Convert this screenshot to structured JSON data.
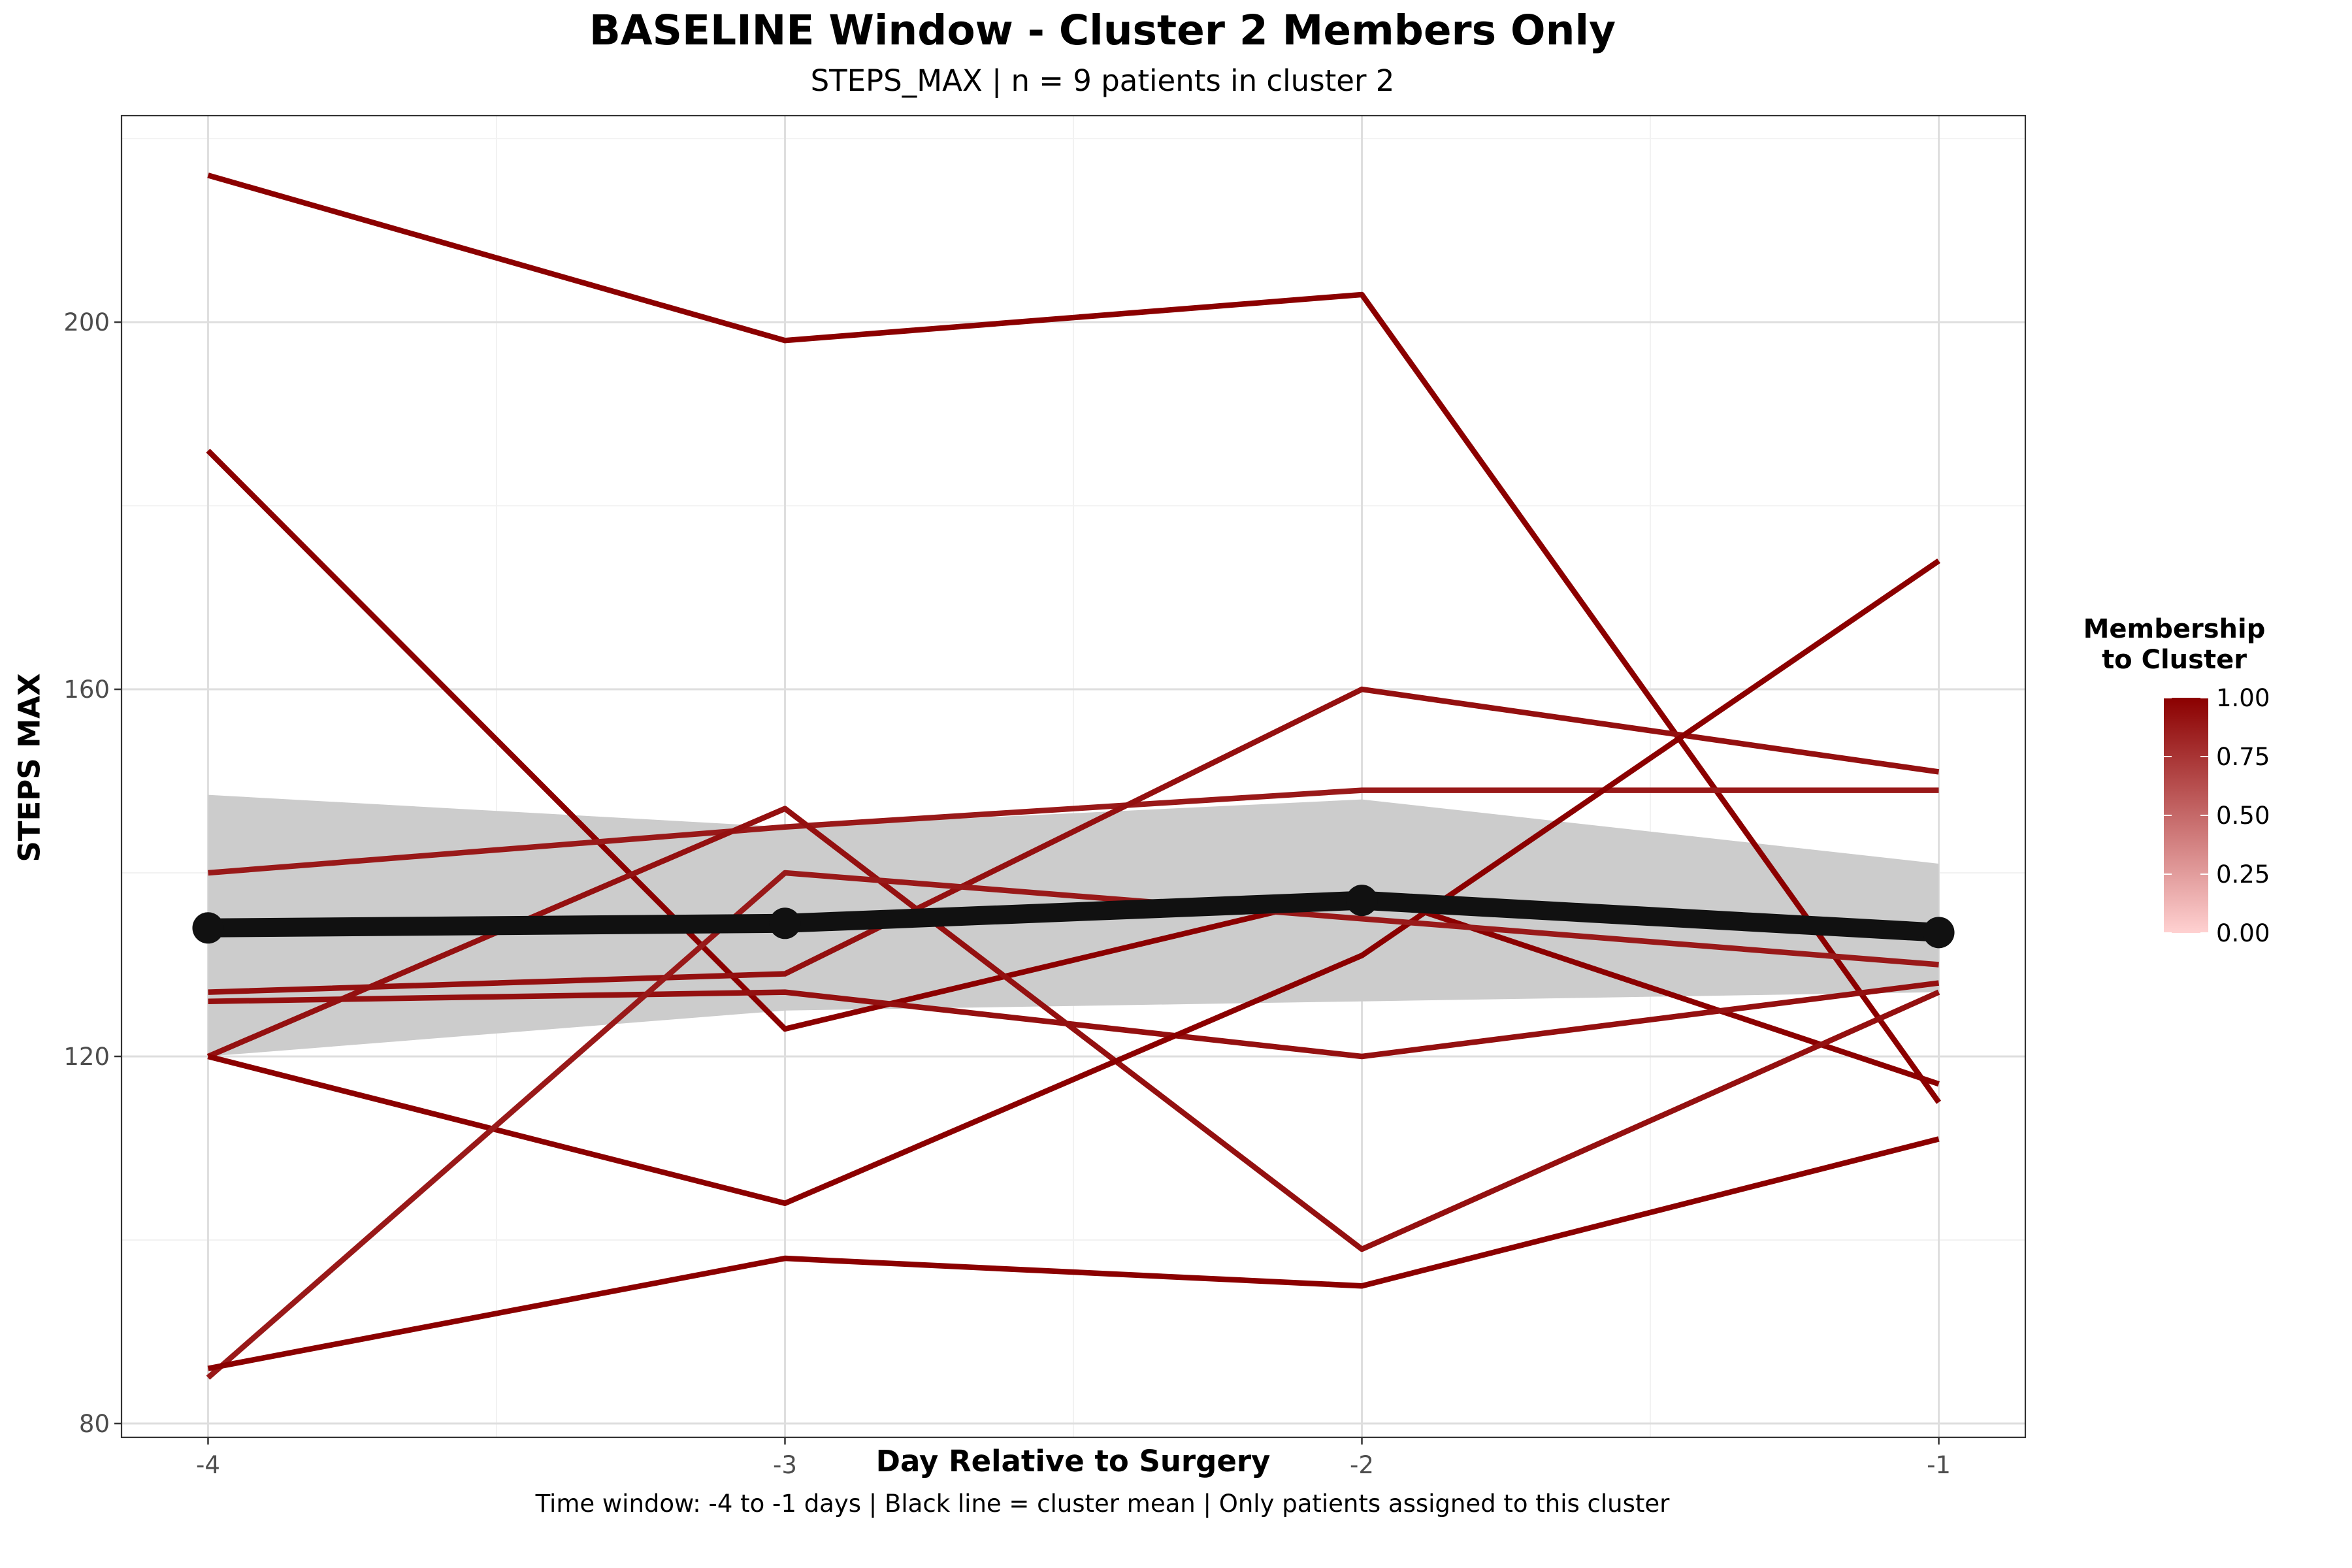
{
  "colors": {
    "member_line": "#8b0000",
    "mean_line": "#111111",
    "ribbon": "#cccccc",
    "legend_low": "#ffd1d1",
    "legend_high": "#8b0000"
  },
  "chart_data": {
    "type": "line",
    "title": "BASELINE Window - Cluster 2 Members Only",
    "subtitle": "STEPS_MAX | n = 9 patients in cluster 2",
    "caption": "Time window: -4 to -1 days | Black line = cluster mean | Only patients assigned to this cluster",
    "xlabel": "Day Relative to Surgery",
    "ylabel": "STEPS MAX",
    "x": [
      -4,
      -3,
      -2,
      -1
    ],
    "x_tick_labels": [
      "-4",
      "-3",
      "-2",
      "-1"
    ],
    "xlim": [
      -4.15,
      -0.85
    ],
    "ylim": [
      78.5,
      222.5
    ],
    "y_ticks": [
      80,
      120,
      160,
      200
    ],
    "y_tick_labels": [
      "80",
      "120",
      "160",
      "200"
    ],
    "grid": true,
    "series": [
      {
        "values": [
          216,
          198,
          203,
          115
        ],
        "membership": 1.0
      },
      {
        "values": [
          186,
          123,
          138,
          117
        ],
        "membership": 1.0
      },
      {
        "values": [
          140,
          145,
          149,
          149
        ],
        "membership": 0.9
      },
      {
        "values": [
          127,
          129,
          160,
          151
        ],
        "membership": 0.95
      },
      {
        "values": [
          126,
          127,
          120,
          128
        ],
        "membership": 0.95
      },
      {
        "values": [
          120,
          147,
          99,
          127
        ],
        "membership": 0.95
      },
      {
        "values": [
          120,
          104,
          131,
          174
        ],
        "membership": 1.0
      },
      {
        "values": [
          85,
          140,
          135,
          130
        ],
        "membership": 0.9
      },
      {
        "values": [
          86,
          98,
          95,
          111
        ],
        "membership": 1.0
      }
    ],
    "mean": {
      "values": [
        134,
        134.5,
        137,
        133.5
      ],
      "ribbon_lower": [
        120,
        125,
        126,
        127
      ],
      "ribbon_upper": [
        148.5,
        145,
        148,
        141
      ]
    },
    "legend": {
      "title_lines": [
        "Membership",
        "to Cluster"
      ],
      "position": "right",
      "range": [
        0,
        1
      ],
      "ticks": [
        1.0,
        0.75,
        0.5,
        0.25,
        0.0
      ],
      "tick_labels": [
        "1.00",
        "0.75",
        "0.50",
        "0.25",
        "0.00"
      ]
    }
  }
}
